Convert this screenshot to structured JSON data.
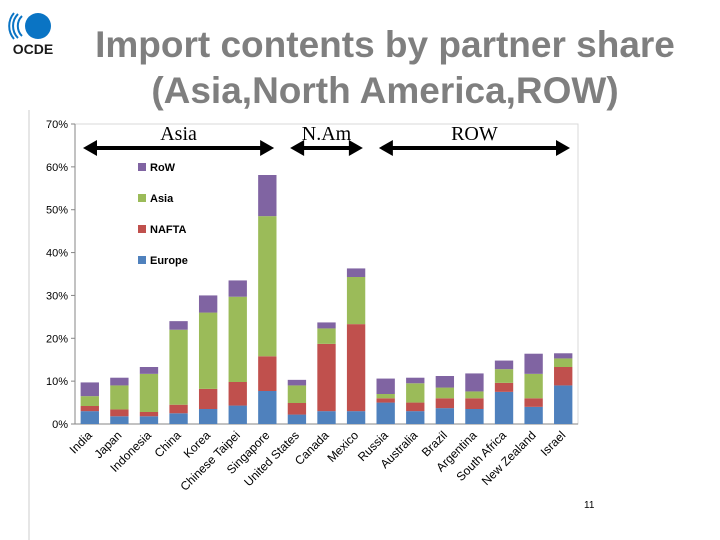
{
  "slide": {
    "logo_text": "OCDE",
    "title_line1": "Import contents by partner share",
    "title_line2": "(Asia,North America,ROW)",
    "page_number": "11"
  },
  "colors": {
    "europe": "#4f81bd",
    "nafta": "#c0504d",
    "asia": "#9bbb59",
    "row": "#8064a2",
    "logo": "#0a74c4",
    "title": "#7f7f7f"
  },
  "groups": [
    {
      "label": "Asia",
      "from": "India",
      "to": "Singapore"
    },
    {
      "label": "N.Am",
      "from": "United States",
      "to": "Mexico"
    },
    {
      "label": "ROW",
      "from": "Russia",
      "to": "Israel"
    }
  ],
  "chart_data": {
    "type": "bar",
    "stacked": true,
    "categories": [
      "India",
      "Japan",
      "Indonesia",
      "China",
      "Korea",
      "Chinese Taipei",
      "Singapore",
      "United States",
      "Canada",
      "Mexico",
      "Russia",
      "Australia",
      "Brazil",
      "Argentina",
      "South Africa",
      "New Zealand",
      "Israel"
    ],
    "series": [
      {
        "name": "Europe",
        "color": "#4f81bd",
        "values": [
          3.0,
          1.8,
          1.8,
          2.5,
          3.5,
          4.3,
          7.7,
          2.2,
          3.0,
          3.0,
          5.0,
          3.0,
          3.7,
          3.5,
          7.5,
          4.0,
          9.0
        ]
      },
      {
        "name": "NAFTA",
        "color": "#c0504d",
        "values": [
          1.2,
          1.6,
          1.0,
          2.0,
          4.7,
          5.5,
          8.1,
          2.7,
          15.7,
          20.3,
          1.0,
          2.0,
          2.3,
          2.5,
          2.1,
          2.0,
          4.3
        ]
      },
      {
        "name": "Asia",
        "color": "#9bbb59",
        "values": [
          2.3,
          5.6,
          8.9,
          17.5,
          17.8,
          19.9,
          32.7,
          4.1,
          3.6,
          11.0,
          1.0,
          4.5,
          2.5,
          1.6,
          3.2,
          5.7,
          2.0
        ]
      },
      {
        "name": "RoW",
        "color": "#8064a2",
        "values": [
          3.2,
          1.8,
          1.6,
          2.0,
          4.0,
          3.8,
          9.6,
          1.3,
          1.4,
          2.0,
          3.6,
          1.3,
          2.7,
          4.2,
          2.0,
          4.7,
          1.2
        ]
      }
    ],
    "legend": [
      "RoW",
      "Asia",
      "NAFTA",
      "Europe"
    ],
    "legend_position": "top-left",
    "y_ticks": [
      "0%",
      "10%",
      "20%",
      "30%",
      "40%",
      "50%",
      "60%",
      "70%"
    ],
    "ylim": [
      0,
      70
    ],
    "grid": false
  }
}
